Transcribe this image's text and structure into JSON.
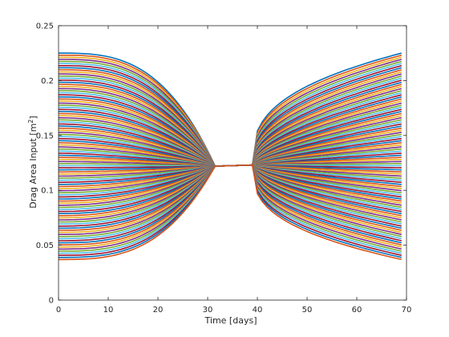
{
  "chart_data": {
    "type": "line",
    "title": "",
    "xlabel": "Time [days]",
    "ylabel_main": "Drag Area Input [m",
    "ylabel_sup": "2",
    "ylabel_end": "]",
    "xlim": [
      0,
      70
    ],
    "ylim": [
      0,
      0.25
    ],
    "xticks": [
      0,
      10,
      20,
      30,
      40,
      50,
      60,
      70
    ],
    "ytick_labels": [
      "0",
      "0.05",
      "0.1",
      "0.15",
      "0.2",
      "0.25"
    ],
    "ytick_values": [
      0,
      0.05,
      0.1,
      0.15,
      0.2,
      0.25
    ],
    "grid": false,
    "legend": "none",
    "colors": [
      "#0072BD",
      "#D95319",
      "#EDB120",
      "#7E2F8E",
      "#77AC30",
      "#4DBEEE",
      "#A2142F"
    ],
    "data_range": {
      "x_start": 0,
      "x_end": 69
    },
    "convergence": {
      "first_point": [
        31.5,
        0.122
      ],
      "second_point": [
        39,
        0.123
      ]
    },
    "bounds": {
      "upper": 0.225,
      "lower": 0.037
    },
    "series_count": 100
  }
}
